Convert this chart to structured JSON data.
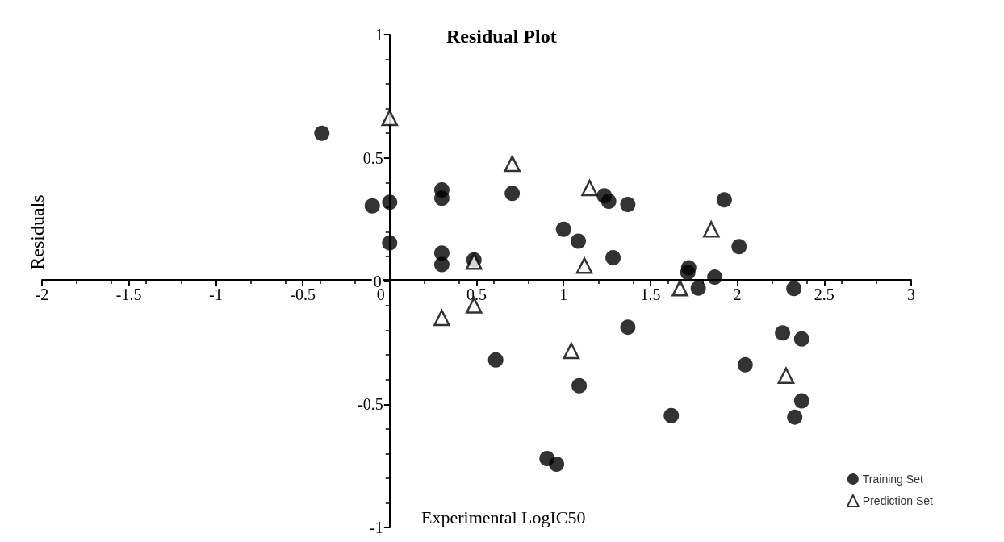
{
  "chart_data": {
    "type": "scatter",
    "title": "Residual Plot",
    "xlabel": "Experimental LogIC50",
    "ylabel": "Residuals",
    "xlim": [
      -2,
      3
    ],
    "xticks": [
      -2,
      -1.5,
      -1,
      -0.5,
      0,
      0.5,
      1,
      1.5,
      2,
      2.5,
      3
    ],
    "ylim": [
      -1,
      1
    ],
    "yticks": [
      -1,
      -0.5,
      0,
      0.5,
      1
    ],
    "grid": false,
    "legend": "bottom right",
    "series": [
      {
        "name": "Training Set",
        "color": "#000000",
        "marker": "circle",
        "x": [
          -0.39,
          -0.1,
          0,
          0,
          0.3,
          0.3,
          0.3,
          0.3,
          0.485,
          0.705,
          1,
          1.085,
          1.26,
          1.235,
          1.37,
          1.285,
          1.72,
          1.715,
          1.775,
          1.87,
          1.925,
          2.01,
          2.325,
          2.26,
          2.37,
          1.37,
          0.61,
          1.09,
          2.045,
          1.62,
          2.37,
          2.33,
          0.905,
          0.96
        ],
        "values": [
          0.6,
          0.305,
          0.32,
          0.155,
          0.37,
          0.336,
          0.114,
          0.067,
          0.086,
          0.356,
          0.21,
          0.162,
          0.324,
          0.346,
          0.311,
          0.095,
          0.054,
          0.035,
          -0.029,
          0.016,
          0.33,
          0.14,
          -0.03,
          -0.21,
          -0.235,
          -0.187,
          -0.32,
          -0.425,
          -0.34,
          -0.546,
          -0.486,
          -0.552,
          -0.72,
          -0.743
        ]
      },
      {
        "name": "Prediction Set",
        "color": "#000000",
        "marker": "triangle",
        "x": [
          0,
          0.705,
          1.15,
          1.85,
          1.12,
          0.485,
          0.3,
          0.485,
          1.045,
          1.67,
          2.28
        ],
        "values": [
          0.663,
          0.476,
          0.378,
          0.21,
          0.063,
          0.079,
          -0.149,
          -0.098,
          -0.283,
          -0.029,
          -0.384
        ]
      }
    ]
  }
}
